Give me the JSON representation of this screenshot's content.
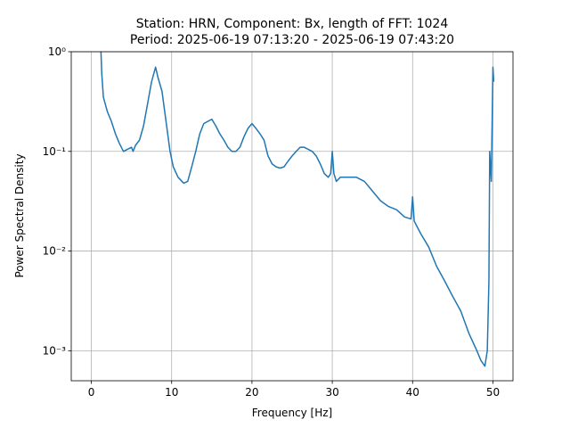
{
  "chart_data": {
    "type": "line",
    "title": "Station: HRN, Component: Bx, length of FFT: 1024",
    "subtitle": "Period: 2025-06-19 07:13:20 - 2025-06-19 07:43:20",
    "xlabel": "Frequency [Hz]",
    "ylabel": "Power Spectral Density",
    "color": "#1f77b4",
    "yscale": "log",
    "grid": true,
    "xlim": [
      -2.5,
      52.5
    ],
    "ylim": [
      0.0005,
      1
    ],
    "xticks": [
      0,
      10,
      20,
      30,
      40,
      50
    ],
    "yticks": [
      {
        "value": 1,
        "label": "10⁰"
      },
      {
        "value": 0.1,
        "label": "10⁻¹"
      },
      {
        "value": 0.01,
        "label": "10⁻²"
      },
      {
        "value": 0.001,
        "label": "10⁻³"
      }
    ],
    "x": [
      1.2,
      1.3,
      1.5,
      2,
      2.5,
      3,
      3.5,
      4,
      4.5,
      5,
      5.2,
      5.5,
      6,
      6.5,
      7,
      7.5,
      8,
      8.3,
      8.8,
      9.3,
      9.8,
      10.2,
      10.8,
      11.5,
      12,
      12.5,
      13,
      13.5,
      14,
      14.5,
      15,
      15.5,
      16,
      16.5,
      17,
      17.5,
      18,
      18.5,
      19,
      19.5,
      20,
      20.5,
      21,
      21.5,
      22,
      22.5,
      23,
      23.5,
      24,
      24.5,
      25,
      25.5,
      26,
      26.5,
      27,
      27.5,
      28,
      28.5,
      29,
      29.5,
      29.8,
      30,
      30.2,
      30.5,
      31,
      32,
      33,
      34,
      35,
      36,
      37,
      38,
      39,
      39.8,
      40,
      40.2,
      41,
      42,
      43,
      44,
      45,
      46,
      47,
      48,
      48.5,
      49,
      49.3,
      49.5,
      49.6,
      49.8,
      50,
      50.1
    ],
    "values": [
      1.0,
      0.6,
      0.35,
      0.25,
      0.2,
      0.15,
      0.12,
      0.1,
      0.105,
      0.11,
      0.1,
      0.115,
      0.13,
      0.18,
      0.3,
      0.5,
      0.7,
      0.55,
      0.4,
      0.2,
      0.1,
      0.07,
      0.055,
      0.048,
      0.05,
      0.07,
      0.1,
      0.15,
      0.19,
      0.2,
      0.21,
      0.18,
      0.15,
      0.13,
      0.11,
      0.1,
      0.1,
      0.11,
      0.14,
      0.17,
      0.19,
      0.17,
      0.15,
      0.13,
      0.09,
      0.075,
      0.07,
      0.068,
      0.07,
      0.08,
      0.09,
      0.1,
      0.11,
      0.11,
      0.105,
      0.1,
      0.09,
      0.075,
      0.06,
      0.055,
      0.06,
      0.1,
      0.06,
      0.05,
      0.055,
      0.055,
      0.055,
      0.05,
      0.04,
      0.032,
      0.028,
      0.026,
      0.022,
      0.021,
      0.035,
      0.02,
      0.015,
      0.011,
      0.007,
      0.005,
      0.0035,
      0.0025,
      0.0015,
      0.001,
      0.0008,
      0.0007,
      0.001,
      0.005,
      0.1,
      0.05,
      0.7,
      0.5
    ]
  }
}
